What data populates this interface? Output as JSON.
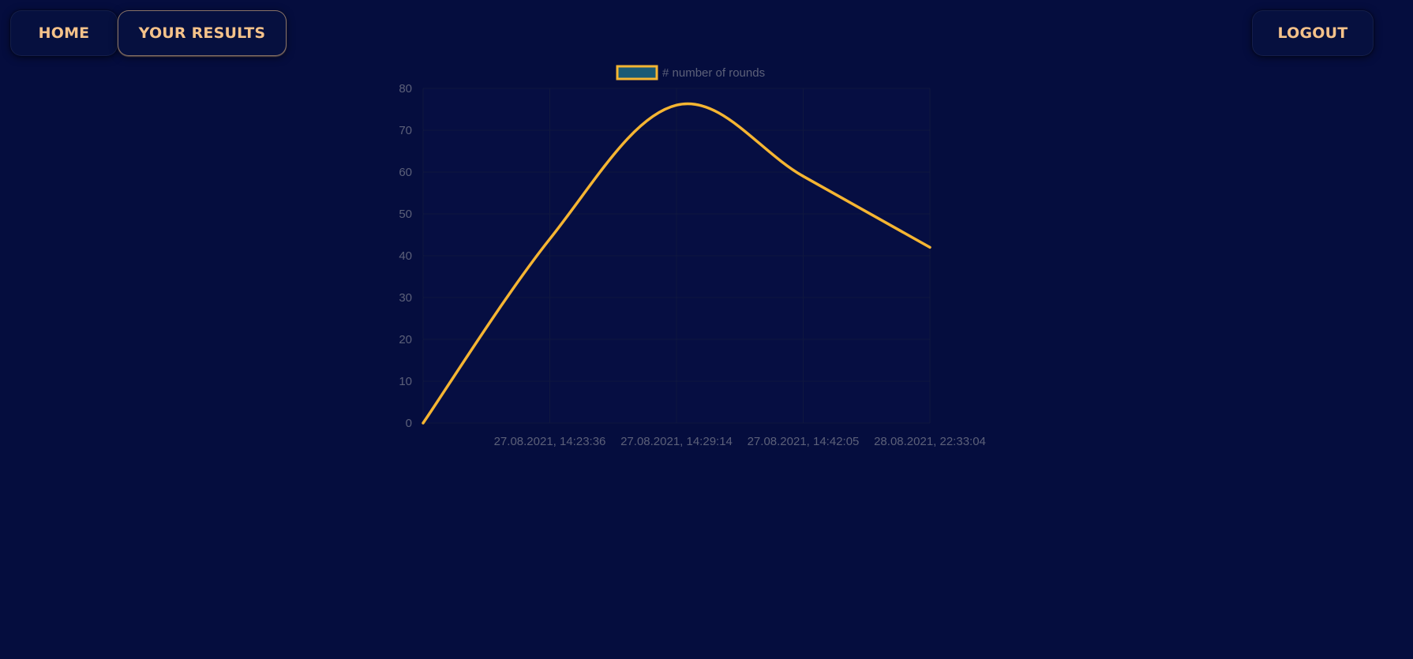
{
  "nav": {
    "home_label": "HOME",
    "results_label": "YOUR RESULTS",
    "logout_label": "LOGOUT"
  },
  "colors": {
    "background": "#050d3e",
    "button_text": "#f4c28a",
    "line": "#f5b532",
    "legend_fill": "#1a5a75",
    "axis_text": "#5c6079",
    "grid": "#0f173f"
  },
  "chart_data": {
    "type": "line",
    "legend": [
      "# number of rounds"
    ],
    "legend_position": "top",
    "categories": [
      "",
      "27.08.2021, 14:23:36",
      "27.08.2021, 14:29:14",
      "27.08.2021, 14:42:05",
      "28.08.2021, 22:33:04"
    ],
    "series": [
      {
        "name": "# number of rounds",
        "values": [
          0,
          44,
          76,
          59,
          42
        ]
      }
    ],
    "ylim": [
      0,
      80
    ],
    "yticks": [
      0,
      10,
      20,
      30,
      40,
      50,
      60,
      70,
      80
    ],
    "grid": true
  }
}
